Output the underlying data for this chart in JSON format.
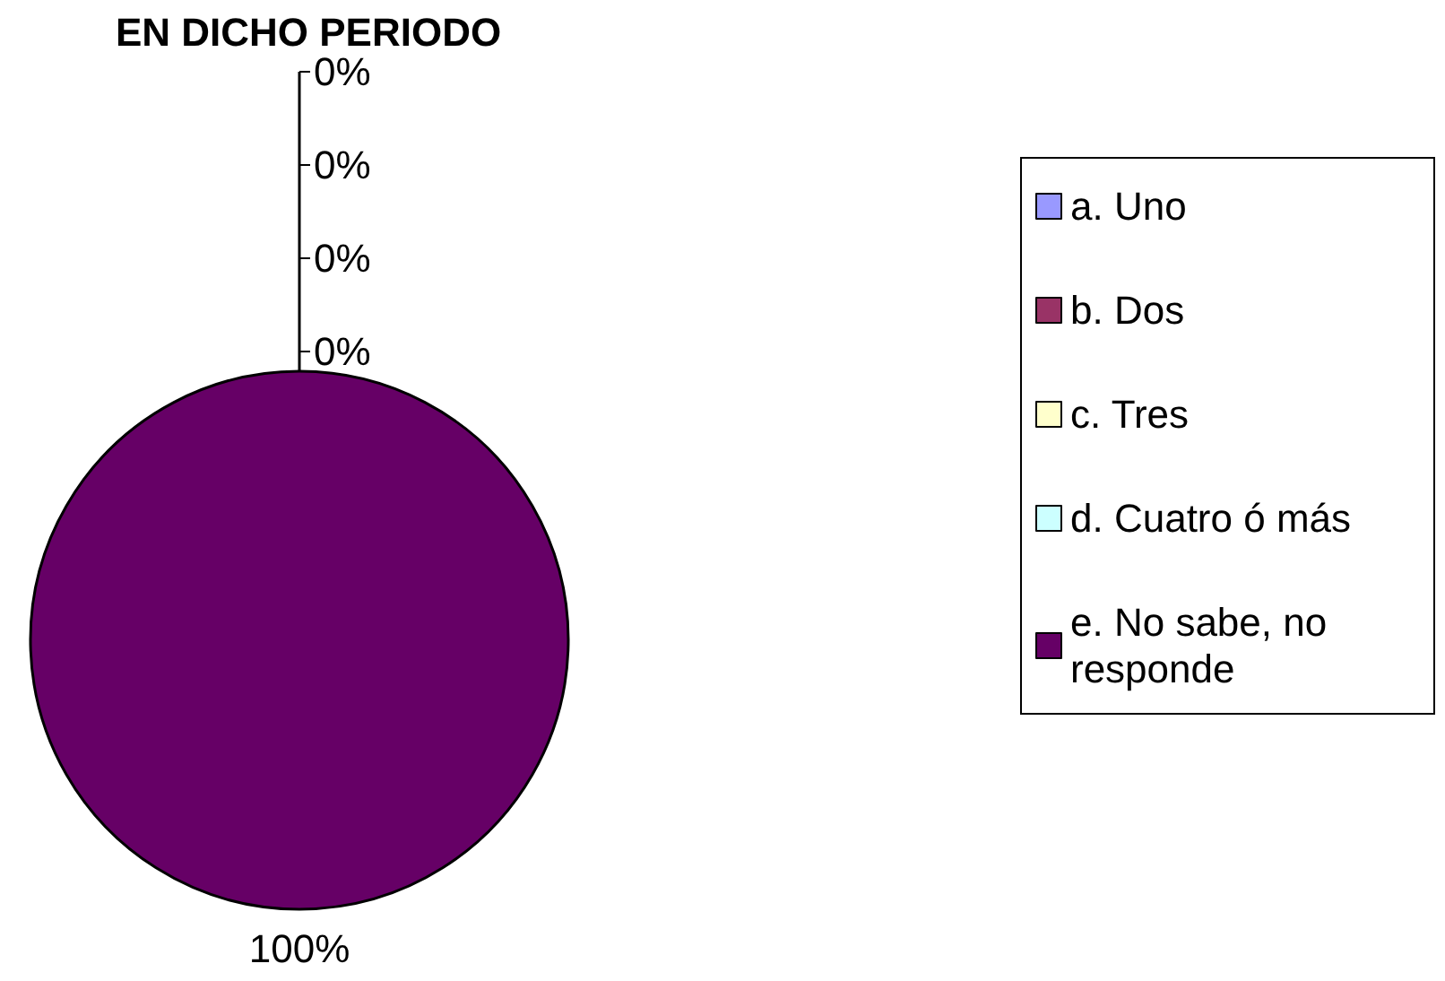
{
  "chart_data": {
    "type": "pie",
    "title": "EN DICHO PERIODO",
    "categories": [
      "a. Uno",
      "b. Dos",
      "c. Tres",
      "d. Cuatro ó más",
      "e. No sabe, no responde"
    ],
    "values": [
      0,
      0,
      0,
      0,
      100
    ],
    "colors": [
      "#9999ff",
      "#993366",
      "#ffffcc",
      "#ccffff",
      "#660066"
    ],
    "legend": "right",
    "value_labels": [
      "0%",
      "0%",
      "0%",
      "0%",
      "100%"
    ]
  }
}
